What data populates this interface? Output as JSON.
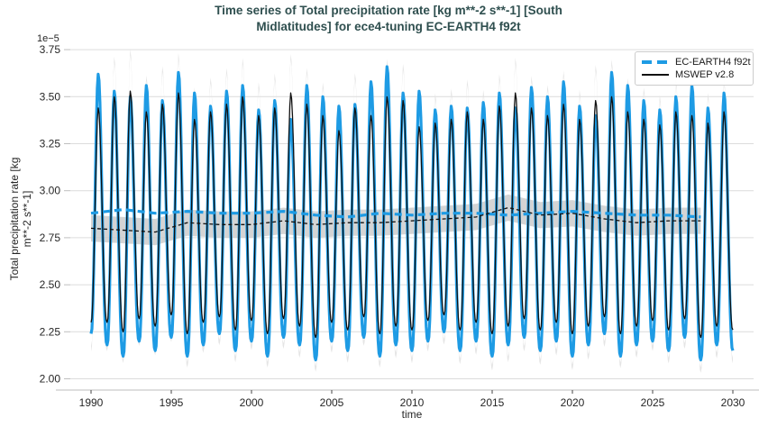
{
  "chart_data": {
    "type": "line",
    "title": "Time series of Total precipitation rate [kg m**-2 s**-1] [South Midlatitudes] for ece4-tuning EC-EARTH4 f92t",
    "title_lines": {
      "0": "Time series of Total precipitation rate [kg m**-2 s**-1] [South",
      "1": "Midlatitudes] for ece4-tuning EC-EARTH4 f92t"
    },
    "xlabel": "time",
    "ylabel": "Total precipitation rate [kg m**-2 s**-1]",
    "ylabel_lines": {
      "0": "Total precipitation rate [kg",
      "1": "m**-2 s**-1]"
    },
    "y_offset_label": "1e−5",
    "axes": {
      "xlim": [
        1988.71,
        2031.29
      ],
      "ylim": [
        1.94,
        3.76
      ],
      "x_ticks": [
        1990,
        1995,
        2000,
        2005,
        2010,
        2015,
        2020,
        2025,
        2030
      ],
      "y_ticks": [
        {
          "value": 3.75,
          "label": "3.75"
        },
        {
          "value": 3.5,
          "label": "3.50"
        },
        {
          "value": 3.25,
          "label": "3.25"
        },
        {
          "value": 3.0,
          "label": "3.00"
        },
        {
          "value": 2.75,
          "label": "2.75"
        },
        {
          "value": 2.5,
          "label": "2.50"
        },
        {
          "value": 2.25,
          "label": "2.25"
        },
        {
          "value": 2.0,
          "label": "2.00"
        }
      ],
      "grid": "horizontal",
      "legend_position": "upper-right"
    },
    "legend": {
      "0": {
        "label": "EC-EARTH4 f92t",
        "style": "dashed-thick"
      },
      "1": {
        "label": "MSWEP v2.8",
        "style": "solid-thin"
      }
    },
    "series": {
      "note": "annual seasonal cycle, values in 1e-5 kg m**-2 s**-1; one peak (mid-year) and one trough (year boundary) per year",
      "year_start": 1990,
      "ec_earth4_f92t": {
        "start_value": 2.24,
        "peaks": [
          3.62,
          3.53,
          3.5,
          3.56,
          3.48,
          3.63,
          3.52,
          3.45,
          3.53,
          3.56,
          3.43,
          3.48,
          3.38,
          3.56,
          3.5,
          3.45,
          3.46,
          3.58,
          3.66,
          3.52,
          3.53,
          3.43,
          3.45,
          3.44,
          3.47,
          3.52,
          3.44,
          3.55,
          3.5,
          3.58,
          3.45,
          3.4,
          3.63,
          3.56,
          3.48,
          3.43,
          3.5,
          3.56,
          3.44,
          3.52
        ],
        "troughs": [
          2.18,
          2.12,
          2.2,
          2.15,
          2.22,
          2.12,
          2.18,
          2.24,
          2.15,
          2.2,
          2.12,
          2.22,
          2.18,
          2.1,
          2.2,
          2.15,
          2.22,
          2.12,
          2.18,
          2.15,
          2.2,
          2.25,
          2.15,
          2.2,
          2.12,
          2.18,
          2.22,
          2.15,
          2.2,
          2.12,
          2.18,
          2.24,
          2.12,
          2.18,
          2.2,
          2.15,
          2.22,
          2.1,
          2.18,
          2.15
        ]
      },
      "mswep_v28": {
        "start_value": 2.3,
        "peaks": [
          3.44,
          3.5,
          3.53,
          3.42,
          3.46,
          3.52,
          3.38,
          3.42,
          3.46,
          3.5,
          3.4,
          3.44,
          3.52,
          3.46,
          3.4,
          3.32,
          3.44,
          3.4,
          3.5,
          3.48,
          3.34,
          3.36,
          3.38,
          3.42,
          3.38,
          3.45,
          3.52,
          3.44,
          3.4,
          3.46,
          3.38,
          3.48,
          3.5,
          3.42,
          3.38,
          3.35,
          3.42,
          3.4,
          3.36,
          3.42
        ],
        "troughs": [
          2.3,
          2.25,
          2.32,
          2.28,
          2.34,
          2.24,
          2.3,
          2.33,
          2.26,
          2.31,
          2.24,
          2.32,
          2.28,
          2.22,
          2.3,
          2.26,
          2.33,
          2.24,
          2.28,
          2.26,
          2.31,
          2.34,
          2.26,
          2.3,
          2.24,
          2.28,
          2.32,
          2.26,
          2.3,
          2.24,
          2.28,
          2.33,
          2.24,
          2.28,
          2.31,
          2.26,
          2.32,
          2.22,
          2.28,
          2.26
        ]
      },
      "running_means": {
        "x": [
          1990,
          1992,
          1994,
          1996,
          1998,
          2000,
          2002,
          2004,
          2006,
          2008,
          2010,
          2012,
          2014,
          2016,
          2018,
          2020,
          2022,
          2024,
          2026,
          2028
        ],
        "ec": [
          2.88,
          2.9,
          2.88,
          2.89,
          2.88,
          2.88,
          2.89,
          2.87,
          2.86,
          2.88,
          2.87,
          2.88,
          2.88,
          2.87,
          2.88,
          2.89,
          2.88,
          2.87,
          2.87,
          2.86
        ],
        "mswep": [
          2.8,
          2.79,
          2.78,
          2.83,
          2.82,
          2.82,
          2.84,
          2.82,
          2.83,
          2.83,
          2.84,
          2.85,
          2.86,
          2.91,
          2.87,
          2.88,
          2.85,
          2.83,
          2.84,
          2.84
        ],
        "band_halfwidth": 0.07
      },
      "envelope": {
        "scale": 1.28,
        "offset": 0.015
      }
    },
    "colors": {
      "ec_earth4": "#1e9be4",
      "mswep": "#111111",
      "title": "#2f4f4f",
      "grid": "#dcdcdc",
      "spine": "#c9c9c9",
      "tick_text": "#262626",
      "mean_band": "#c9c9c9",
      "seasonal_envelope": "#e0e0e0"
    }
  }
}
